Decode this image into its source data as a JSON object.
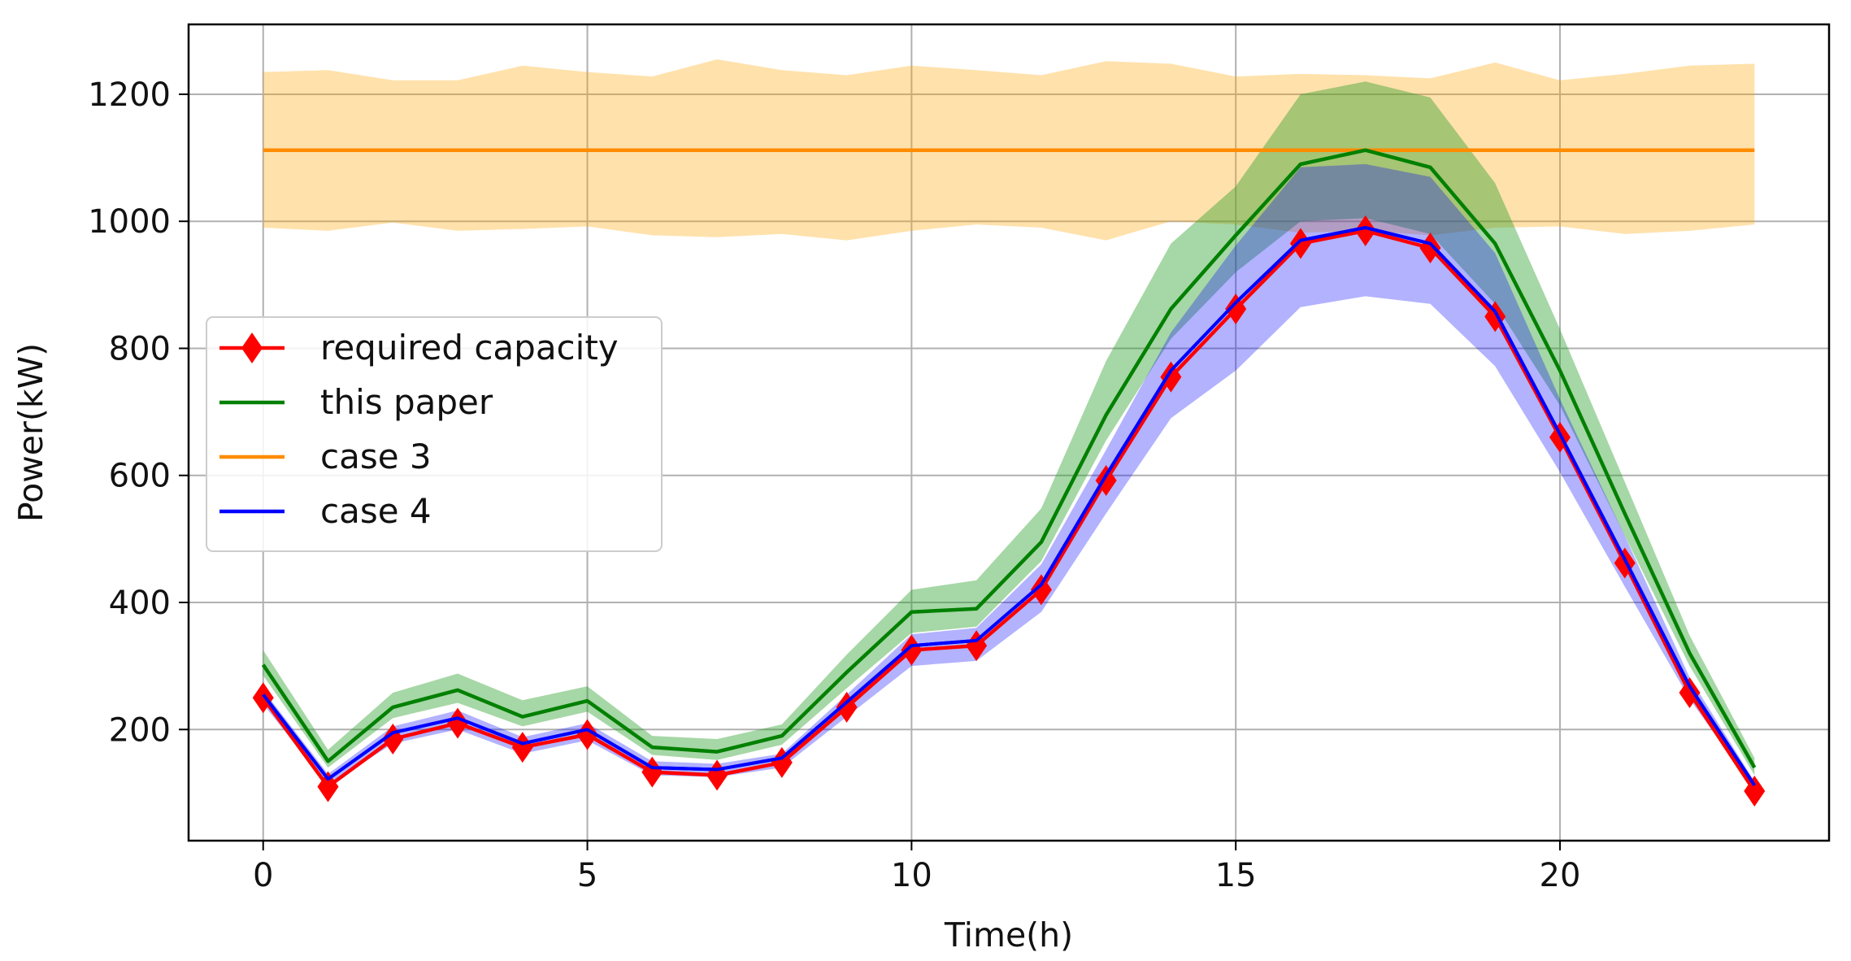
{
  "chart_data": {
    "type": "line",
    "title": "",
    "xlabel": "Time(h)",
    "ylabel": "Power(kW)",
    "xlim": [
      -1.15,
      24.15
    ],
    "ylim": [
      25,
      1310
    ],
    "xticks": [
      0,
      5,
      10,
      15,
      20
    ],
    "yticks": [
      200,
      400,
      600,
      800,
      1000,
      1200
    ],
    "grid": true,
    "legend_position": "center-left",
    "x": [
      0,
      1,
      2,
      3,
      4,
      5,
      6,
      7,
      8,
      9,
      10,
      11,
      12,
      13,
      14,
      15,
      16,
      17,
      18,
      19,
      20,
      21,
      22,
      23
    ],
    "series": [
      {
        "name": "required capacity",
        "color": "#ff0000",
        "marker": "diamond",
        "values": [
          250,
          110,
          185,
          210,
          172,
          192,
          133,
          128,
          148,
          235,
          325,
          332,
          420,
          592,
          755,
          862,
          965,
          985,
          958,
          850,
          660,
          462,
          258,
          103
        ]
      },
      {
        "name": "this paper",
        "color": "#008000",
        "values": [
          302,
          150,
          235,
          262,
          220,
          245,
          172,
          165,
          190,
          290,
          385,
          390,
          495,
          695,
          862,
          978,
          1090,
          1112,
          1085,
          965,
          765,
          540,
          320,
          140
        ],
        "band": {
          "color": "#2ca02c",
          "lower": [
            285,
            140,
            218,
            242,
            205,
            228,
            160,
            152,
            176,
            265,
            352,
            362,
            465,
            655,
            815,
            920,
            1000,
            1005,
            980,
            870,
            710,
            505,
            300,
            128
          ],
          "upper": [
            325,
            168,
            258,
            288,
            246,
            268,
            190,
            185,
            208,
            318,
            420,
            435,
            548,
            780,
            965,
            1055,
            1200,
            1220,
            1195,
            1060,
            830,
            590,
            348,
            155
          ]
        }
      },
      {
        "name": "case 3",
        "color": "#ff8c00",
        "values": [
          1112,
          1112,
          1112,
          1112,
          1112,
          1112,
          1112,
          1112,
          1112,
          1112,
          1112,
          1112,
          1112,
          1112,
          1112,
          1112,
          1112,
          1112,
          1112,
          1112,
          1112,
          1112,
          1112,
          1112
        ],
        "band": {
          "color": "#ffa500",
          "lower": [
            990,
            985,
            998,
            985,
            988,
            992,
            978,
            975,
            980,
            970,
            985,
            995,
            990,
            970,
            1000,
            995,
            982,
            985,
            978,
            990,
            992,
            980,
            985,
            995
          ],
          "upper": [
            1235,
            1238,
            1222,
            1222,
            1245,
            1235,
            1228,
            1255,
            1238,
            1230,
            1245,
            1238,
            1230,
            1252,
            1248,
            1228,
            1232,
            1230,
            1225,
            1250,
            1222,
            1232,
            1245,
            1248
          ]
        }
      },
      {
        "name": "case 4",
        "color": "#0000ff",
        "values": [
          255,
          122,
          195,
          218,
          178,
          200,
          140,
          137,
          155,
          243,
          332,
          340,
          428,
          600,
          765,
          872,
          970,
          990,
          965,
          858,
          665,
          468,
          268,
          112
        ],
        "band": {
          "color": "#0000ff",
          "lower": [
            240,
            112,
            178,
            200,
            162,
            183,
            128,
            125,
            140,
            220,
            300,
            308,
            385,
            540,
            690,
            765,
            865,
            882,
            870,
            772,
            605,
            425,
            248,
            105
          ],
          "upper": [
            262,
            130,
            205,
            230,
            188,
            210,
            150,
            146,
            162,
            255,
            350,
            360,
            460,
            640,
            825,
            962,
            1085,
            1090,
            1070,
            950,
            720,
            505,
            282,
            118
          ]
        }
      }
    ]
  }
}
